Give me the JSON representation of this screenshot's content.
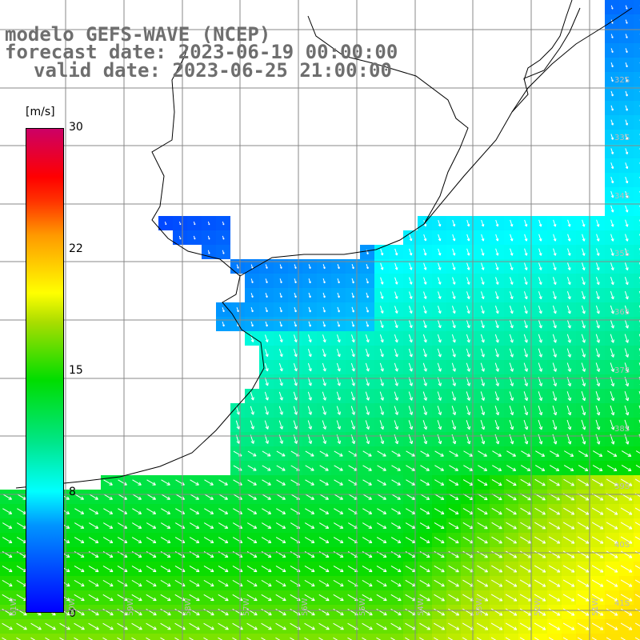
{
  "title": {
    "line1": "modelo GEFS-WAVE (NCEP)",
    "line2": "forecast date: 2023-06-19 00:00:00",
    "line3": "valid date: 2023-06-25 21:00:00"
  },
  "colorbar": {
    "unit": "[m/s]",
    "ticks": [
      "30",
      "22",
      "15",
      "8",
      "0"
    ],
    "colors": [
      "#0000ff",
      "#0095ff",
      "#00ffff",
      "#00e68a",
      "#00dd00",
      "#aadd00",
      "#ffff00",
      "#ff9900",
      "#ff0000",
      "#cc0066"
    ]
  },
  "lat_labels": [
    "32S",
    "33S",
    "34S",
    "35S",
    "36S",
    "37S",
    "38S",
    "39S",
    "40S",
    "41S"
  ],
  "lon_labels": [
    "61W",
    "60W",
    "59W",
    "58W",
    "57W",
    "56W",
    "55W",
    "54W",
    "53W",
    "52W",
    "51W"
  ],
  "colors": {
    "land": "#ffffff",
    "grid": "#888888",
    "coast": "#000000",
    "arrow": "#ffffff",
    "title": "#6e6e6e"
  }
}
